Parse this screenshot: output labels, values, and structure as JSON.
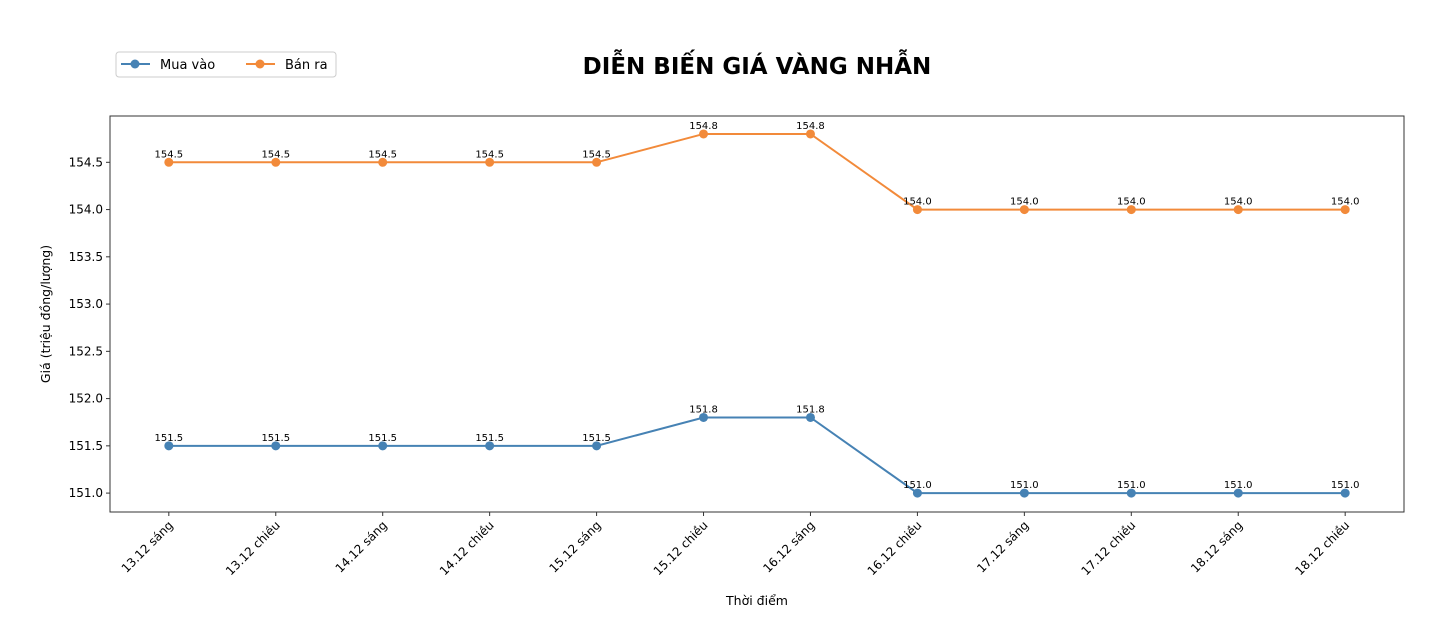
{
  "chart_data": {
    "type": "line",
    "title": "DIỄN BIẾN GIÁ VÀNG NHẪN",
    "xlabel": "Thời điểm",
    "ylabel": "Giá (triệu đồng/lượng)",
    "categories": [
      "13.12 sáng",
      "13.12 chiều",
      "14.12 sáng",
      "14.12 chiều",
      "15.12 sáng",
      "15.12 chiều",
      "16.12 sáng",
      "16.12 chiều",
      "17.12 sáng",
      "17.12 chiều",
      "18.12 sáng",
      "18.12 chiều"
    ],
    "series": [
      {
        "name": "Mua vào",
        "color": "#4682b4",
        "values": [
          151.5,
          151.5,
          151.5,
          151.5,
          151.5,
          151.8,
          151.8,
          151.0,
          151.0,
          151.0,
          151.0,
          151.0
        ]
      },
      {
        "name": "Bán ra",
        "color": "#f28a3a",
        "values": [
          154.5,
          154.5,
          154.5,
          154.5,
          154.5,
          154.8,
          154.8,
          154.0,
          154.0,
          154.0,
          154.0,
          154.0
        ]
      }
    ],
    "yticks": [
      151.0,
      151.5,
      152.0,
      152.5,
      153.0,
      153.5,
      154.0,
      154.5
    ],
    "ylim": [
      150.8,
      154.99
    ],
    "grid": false,
    "legend": "top-left",
    "data_labels": true
  }
}
